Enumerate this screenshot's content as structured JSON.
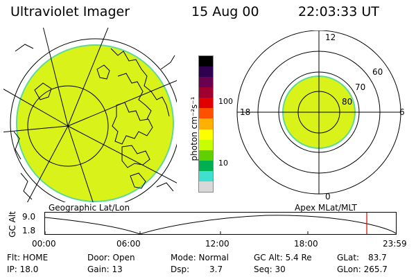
{
  "header": {
    "title": "Ultraviolet Imager",
    "date": "15 Aug 00",
    "time": "22:03:33 UT"
  },
  "colorbar": {
    "unit_label": "photon cm⁻²s⁻¹",
    "ticks": [
      "100",
      "10"
    ],
    "colors": [
      "#d8d8d8",
      "#40e0d0",
      "#00b050",
      "#60d000",
      "#c8ff00",
      "#ffff00",
      "#ffb000",
      "#ff5000",
      "#e00000",
      "#a00030",
      "#6a0050",
      "#300050",
      "#000000"
    ]
  },
  "left_map": {
    "label": "Geographic Lat/Lon",
    "fill_color": "#d9f21a"
  },
  "right_map": {
    "label": "Apex MLat/MLT",
    "mlt_labels": {
      "top": "12",
      "left": "18",
      "right": "6",
      "bottom": "0"
    },
    "lat_labels": [
      "60",
      "70",
      "80"
    ],
    "fill_color": "#d9f21a"
  },
  "altitude_plot": {
    "ylabel": "GC Alt",
    "yticks": [
      "9.0",
      "1.8"
    ],
    "xticks": [
      "00:00",
      "06:00",
      "12:00",
      "18:00",
      "23:59"
    ],
    "marker_color": "#e00000"
  },
  "info": {
    "flt": "Flt: HOME",
    "ip": "IP: 18.0",
    "door": "Door: Open",
    "gain": "Gain: 13",
    "mode": "Mode: Normal",
    "dsp": "Dsp:",
    "dsp_value": "3.7",
    "gc_alt": "GC Alt: 5.4 Re",
    "seq": "Seq: 30",
    "glat": "GLat:",
    "glat_value": "83.7",
    "glon": "GLon: 265.7"
  }
}
